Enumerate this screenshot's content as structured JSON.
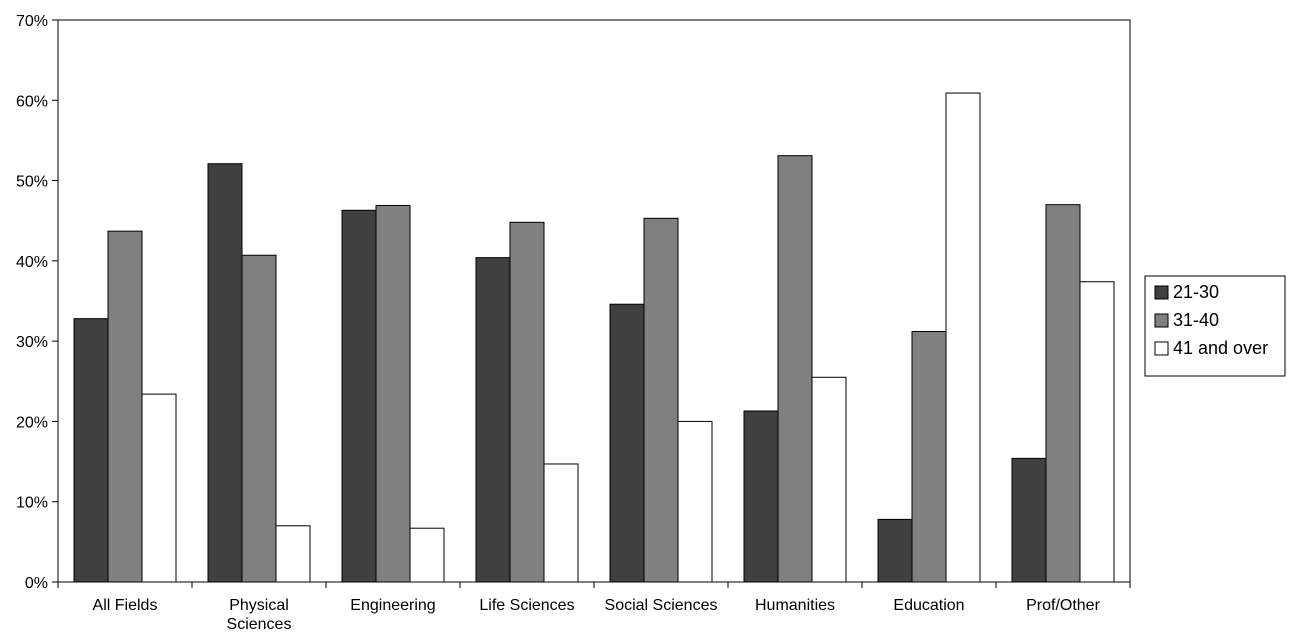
{
  "chart_data": {
    "type": "bar",
    "categories": [
      "All Fields",
      "Physical Sciences",
      "Engineering",
      "Life Sciences",
      "Social Sciences",
      "Humanities",
      "Education",
      "Prof/Other"
    ],
    "category_lines": [
      [
        "All Fields"
      ],
      [
        "Physical",
        "Sciences"
      ],
      [
        "Engineering"
      ],
      [
        "Life Sciences"
      ],
      [
        "Social Sciences"
      ],
      [
        "Humanities"
      ],
      [
        "Education"
      ],
      [
        "Prof/Other"
      ]
    ],
    "series": [
      {
        "name": "21-30",
        "color": "#404040",
        "values": [
          32.8,
          52.1,
          46.3,
          40.4,
          34.6,
          21.3,
          7.8,
          15.4
        ]
      },
      {
        "name": "31-40",
        "color": "#808080",
        "values": [
          43.7,
          40.7,
          46.9,
          44.8,
          45.3,
          53.1,
          31.2,
          47.0
        ]
      },
      {
        "name": "41 and over",
        "color": "#ffffff",
        "values": [
          23.4,
          7.0,
          6.7,
          14.7,
          20.0,
          25.5,
          60.9,
          37.4
        ]
      }
    ],
    "ylim": [
      0,
      70
    ],
    "yticks": [
      0,
      10,
      20,
      30,
      40,
      50,
      60,
      70
    ],
    "ytick_labels": [
      "0%",
      "10%",
      "20%",
      "30%",
      "40%",
      "50%",
      "60%",
      "70%"
    ],
    "grid": false,
    "legend_position": "right",
    "title": "",
    "xlabel": "",
    "ylabel": ""
  }
}
